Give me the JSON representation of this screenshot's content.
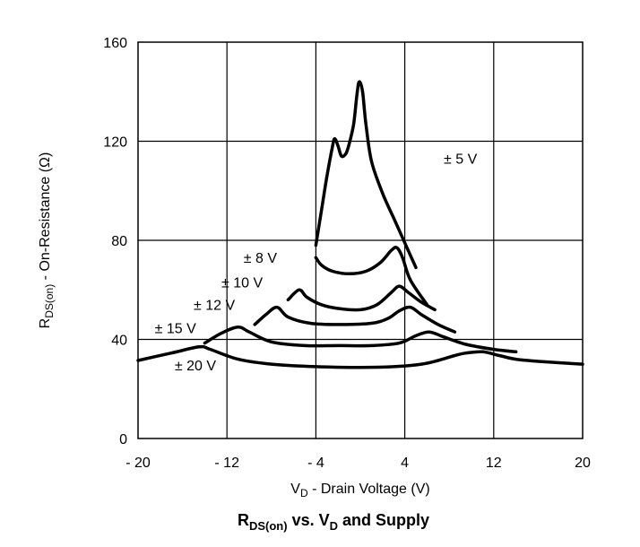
{
  "chart_data": {
    "type": "line",
    "title": {
      "main": "R",
      "sub": "DS(on)",
      "mid": " vs. V",
      "sub2": "D",
      "tail": " and Supply"
    },
    "xlabel": {
      "main": "V",
      "sub": "D",
      "tail": " - Drain Voltage (V)"
    },
    "ylabel": {
      "main": "R",
      "sub": "DS(on)",
      "tail": " - On-Resistance (Ω)"
    },
    "xlim": [
      -20,
      20
    ],
    "ylim": [
      0,
      160
    ],
    "xticks": [
      {
        "v": -20,
        "label": "- 20"
      },
      {
        "v": -12,
        "label": "- 12"
      },
      {
        "v": -4,
        "label": "- 4"
      },
      {
        "v": 4,
        "label": "4"
      },
      {
        "v": 12,
        "label": "12"
      },
      {
        "v": 20,
        "label": "20"
      }
    ],
    "yticks": [
      {
        "v": 0,
        "label": "0"
      },
      {
        "v": 40,
        "label": "40"
      },
      {
        "v": 80,
        "label": "80"
      },
      {
        "v": 120,
        "label": "120"
      },
      {
        "v": 160,
        "label": "160"
      }
    ],
    "grid": true,
    "line_color": "#000000",
    "series": [
      {
        "name": "± 5 V",
        "label_pos": [
          7.5,
          111
        ],
        "points": [
          [
            -4,
            78
          ],
          [
            -3.5,
            92
          ],
          [
            -3,
            106
          ],
          [
            -2.5,
            118
          ],
          [
            -2.3,
            121
          ],
          [
            -2,
            118
          ],
          [
            -1.7,
            114
          ],
          [
            -1.3,
            115
          ],
          [
            -1,
            119
          ],
          [
            -0.6,
            127
          ],
          [
            -0.3,
            139
          ],
          [
            -0.1,
            144
          ],
          [
            0.2,
            140
          ],
          [
            0.5,
            127
          ],
          [
            1,
            112
          ],
          [
            2,
            99
          ],
          [
            3,
            89
          ],
          [
            4,
            79
          ],
          [
            5,
            69
          ]
        ]
      },
      {
        "name": "± 8 V",
        "label_pos": [
          -10.5,
          71
        ],
        "points": [
          [
            -4,
            73
          ],
          [
            -3.5,
            70
          ],
          [
            -2.5,
            67.5
          ],
          [
            -1,
            66.5
          ],
          [
            0.5,
            67.5
          ],
          [
            1.8,
            71
          ],
          [
            2.8,
            76
          ],
          [
            3.3,
            77
          ],
          [
            3.8,
            73
          ],
          [
            4.5,
            64
          ],
          [
            6,
            54
          ]
        ]
      },
      {
        "name": "± 10 V",
        "label_pos": [
          -12.5,
          61
        ],
        "points": [
          [
            -6.5,
            56
          ],
          [
            -5.5,
            60
          ],
          [
            -4.8,
            57
          ],
          [
            -3.5,
            54
          ],
          [
            -2,
            52.5
          ],
          [
            0,
            52
          ],
          [
            1.5,
            54
          ],
          [
            2.8,
            59
          ],
          [
            3.5,
            61.5
          ],
          [
            4.3,
            59
          ],
          [
            5.5,
            55
          ],
          [
            6.7,
            52
          ]
        ]
      },
      {
        "name": "± 12 V",
        "label_pos": [
          -15,
          52
        ],
        "points": [
          [
            -9.5,
            46
          ],
          [
            -8.5,
            50
          ],
          [
            -7.5,
            53
          ],
          [
            -6.5,
            49
          ],
          [
            -4.5,
            46.5
          ],
          [
            -2,
            46
          ],
          [
            1,
            46.5
          ],
          [
            2.5,
            48.5
          ],
          [
            3.5,
            51.5
          ],
          [
            4.5,
            53
          ],
          [
            5.5,
            50
          ],
          [
            7,
            46
          ],
          [
            8.5,
            43
          ]
        ]
      },
      {
        "name": "± 15 V",
        "label_pos": [
          -18.5,
          42.5
        ],
        "points": [
          [
            -14,
            38.5
          ],
          [
            -12.5,
            42.5
          ],
          [
            -11,
            45
          ],
          [
            -10,
            43
          ],
          [
            -8,
            39
          ],
          [
            -5,
            37.5
          ],
          [
            -2,
            37.5
          ],
          [
            1,
            37.5
          ],
          [
            3.5,
            38.5
          ],
          [
            5,
            41.5
          ],
          [
            6.2,
            43
          ],
          [
            7.5,
            41
          ],
          [
            9.5,
            38
          ],
          [
            12,
            36
          ],
          [
            14,
            35
          ]
        ]
      },
      {
        "name": "± 20 V",
        "label_pos": [
          -16.7,
          27.5
        ],
        "points": [
          [
            -20,
            31.5
          ],
          [
            -17,
            34.5
          ],
          [
            -14.5,
            37
          ],
          [
            -13.5,
            36
          ],
          [
            -11,
            32
          ],
          [
            -8,
            30
          ],
          [
            -4,
            29
          ],
          [
            0,
            28.7
          ],
          [
            3,
            29
          ],
          [
            5.5,
            30
          ],
          [
            7,
            31.5
          ],
          [
            8.5,
            33.5
          ],
          [
            9.5,
            34.5
          ],
          [
            11,
            35
          ],
          [
            12.5,
            33.5
          ],
          [
            14,
            32
          ],
          [
            16.5,
            31
          ],
          [
            20,
            30
          ]
        ]
      }
    ]
  }
}
